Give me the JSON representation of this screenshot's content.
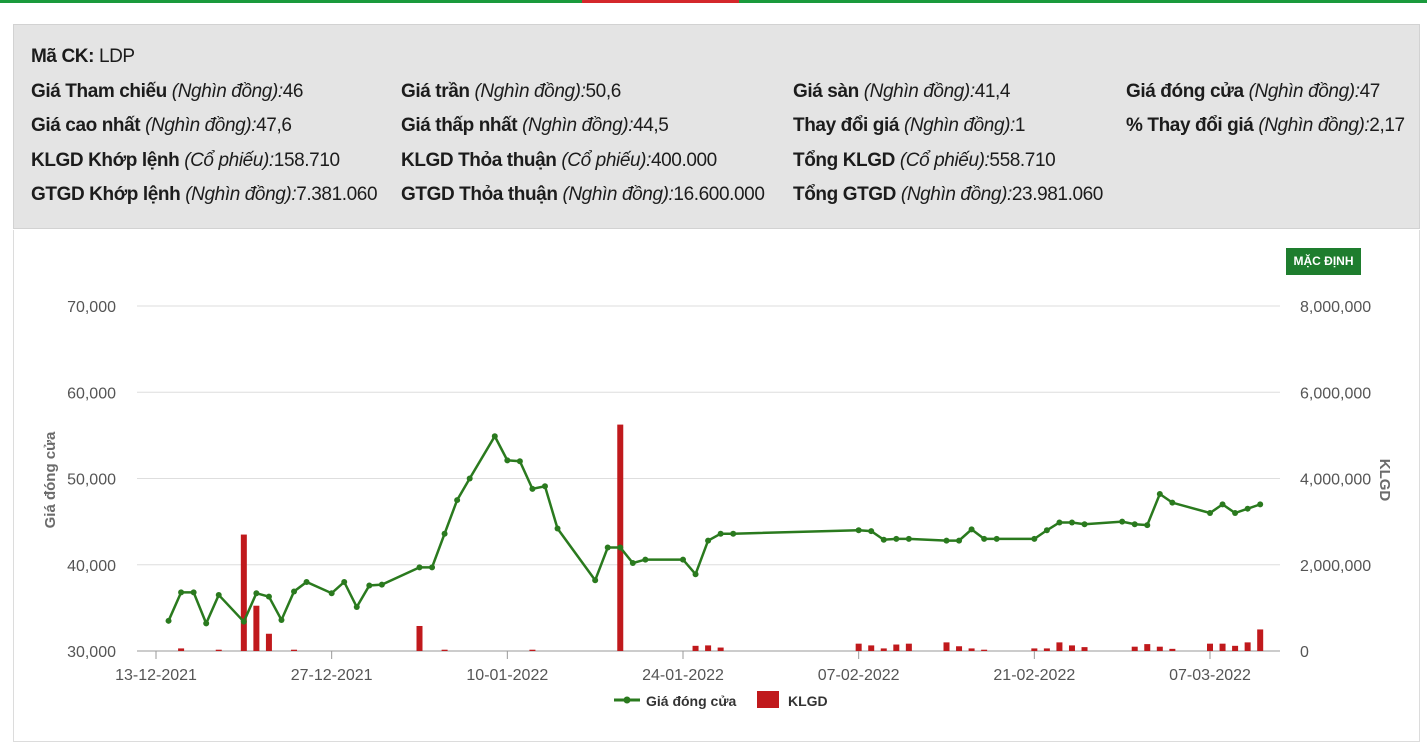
{
  "stats": {
    "ticker_label": "Mã CK:",
    "ticker_value": "LDP",
    "cells": [
      {
        "label": "Giá Tham chiếu",
        "unit": "(Nghìn đồng):",
        "value": "46"
      },
      {
        "label": "Giá trần",
        "unit": "(Nghìn đồng):",
        "value": "50,6"
      },
      {
        "label": "Giá sàn",
        "unit": "(Nghìn đồng):",
        "value": "41,4"
      },
      {
        "label": "Giá đóng cửa",
        "unit": "(Nghìn đồng):",
        "value": "47"
      },
      {
        "label": "Giá cao nhất",
        "unit": "(Nghìn đồng):",
        "value": "47,6"
      },
      {
        "label": "Giá thấp nhất",
        "unit": "(Nghìn đồng):",
        "value": "44,5"
      },
      {
        "label": "Thay đổi giá",
        "unit": "(Nghìn đồng):",
        "value": "1"
      },
      {
        "label": "% Thay đổi giá",
        "unit": "(Nghìn đồng):",
        "value": "2,17"
      },
      {
        "label": "KLGD Khớp lệnh",
        "unit": "(Cổ phiếu):",
        "value": "158.710"
      },
      {
        "label": "KLGD Thỏa thuận",
        "unit": "(Cổ phiếu):",
        "value": "400.000"
      },
      {
        "label": "Tổng KLGD",
        "unit": "(Cổ phiếu):",
        "value": "558.710"
      },
      {
        "label": "GTGD Khớp lệnh",
        "unit": "(Nghìn đồng):",
        "value": "7.381.060"
      },
      {
        "label": "GTGD Thỏa thuận",
        "unit": "(Nghìn đồng):",
        "value": "16.600.000"
      },
      {
        "label": "Tổng GTGD",
        "unit": "(Nghìn đồng):",
        "value": "23.981.060"
      }
    ]
  },
  "default_button_label": "MẶC ĐỊNH",
  "colors": {
    "price_line": "#2a7a1e",
    "volume_bar": "#c0191c",
    "accent_green": "#1e7d2e",
    "accent_red": "#d4272b"
  },
  "chart_data": {
    "type": "line+bar",
    "ylabel": "Giá đóng cửa",
    "y2label": "KLGD",
    "ylim": [
      30000,
      70000
    ],
    "y2lim": [
      0,
      8000000
    ],
    "y_ticks": [
      "70,000",
      "60,000",
      "50,000",
      "40,000",
      "30,000"
    ],
    "y2_ticks": [
      "8,000,000",
      "6,000,000",
      "4,000,000",
      "2,000,000",
      "0"
    ],
    "x_ticks": [
      "13-12-2021",
      "27-12-2021",
      "10-01-2022",
      "24-01-2022",
      "07-02-2022",
      "21-02-2022",
      "07-03-2022"
    ],
    "legend": [
      "Giá đóng cửa",
      "KLGD"
    ],
    "legend_position": "bottom",
    "x_range": [
      "2021-12-13",
      "2022-03-11"
    ],
    "price": {
      "name": "Giá đóng cửa",
      "x": [
        "2021-12-14",
        "2021-12-15",
        "2021-12-16",
        "2021-12-17",
        "2021-12-18",
        "2021-12-20",
        "2021-12-21",
        "2021-12-22",
        "2021-12-23",
        "2021-12-24",
        "2021-12-25",
        "2021-12-27",
        "2021-12-28",
        "2021-12-29",
        "2021-12-30",
        "2021-12-31",
        "2022-01-03",
        "2022-01-04",
        "2022-01-05",
        "2022-01-06",
        "2022-01-07",
        "2022-01-09",
        "2022-01-10",
        "2022-01-11",
        "2022-01-12",
        "2022-01-13",
        "2022-01-14",
        "2022-01-17",
        "2022-01-18",
        "2022-01-19",
        "2022-01-20",
        "2022-01-21",
        "2022-01-24",
        "2022-01-25",
        "2022-01-26",
        "2022-01-27",
        "2022-01-28",
        "2022-02-07",
        "2022-02-08",
        "2022-02-09",
        "2022-02-10",
        "2022-02-11",
        "2022-02-14",
        "2022-02-15",
        "2022-02-16",
        "2022-02-17",
        "2022-02-18",
        "2022-02-21",
        "2022-02-22",
        "2022-02-23",
        "2022-02-24",
        "2022-02-25",
        "2022-02-28",
        "2022-03-01",
        "2022-03-02",
        "2022-03-03",
        "2022-03-04",
        "2022-03-07",
        "2022-03-08",
        "2022-03-09",
        "2022-03-10",
        "2022-03-11"
      ],
      "values": [
        33500,
        36800,
        36800,
        33200,
        36500,
        33400,
        36700,
        36300,
        33600,
        36900,
        38000,
        36700,
        38000,
        35100,
        37600,
        37700,
        39700,
        39700,
        43600,
        47500,
        50000,
        54900,
        52100,
        52000,
        48800,
        49100,
        44200,
        38200,
        42000,
        42000,
        40200,
        40600,
        40600,
        38900,
        42800,
        43600,
        43600,
        44000,
        43900,
        42900,
        43000,
        43000,
        42800,
        42800,
        44100,
        43000,
        43000,
        43000,
        44000,
        44900,
        44900,
        44700,
        45000,
        44700,
        44600,
        48200,
        47200,
        46000,
        47000,
        46000,
        46500,
        47000
      ]
    },
    "volume": {
      "name": "KLGD",
      "x": [
        "2021-12-15",
        "2021-12-18",
        "2021-12-20",
        "2021-12-21",
        "2021-12-22",
        "2021-12-24",
        "2022-01-03",
        "2022-01-05",
        "2022-01-12",
        "2022-01-19",
        "2022-01-25",
        "2022-01-26",
        "2022-01-27",
        "2022-02-07",
        "2022-02-08",
        "2022-02-09",
        "2022-02-10",
        "2022-02-11",
        "2022-02-14",
        "2022-02-15",
        "2022-02-16",
        "2022-02-17",
        "2022-02-21",
        "2022-02-22",
        "2022-02-23",
        "2022-02-24",
        "2022-02-25",
        "2022-03-01",
        "2022-03-02",
        "2022-03-03",
        "2022-03-04",
        "2022-03-07",
        "2022-03-08",
        "2022-03-09",
        "2022-03-10",
        "2022-03-11"
      ],
      "values": [
        60000,
        30000,
        2700000,
        1050000,
        400000,
        30000,
        580000,
        30000,
        30000,
        5250000,
        120000,
        130000,
        80000,
        170000,
        130000,
        60000,
        150000,
        170000,
        200000,
        110000,
        60000,
        30000,
        60000,
        60000,
        200000,
        130000,
        90000,
        100000,
        160000,
        100000,
        50000,
        170000,
        170000,
        120000,
        200000,
        500000
      ]
    }
  }
}
